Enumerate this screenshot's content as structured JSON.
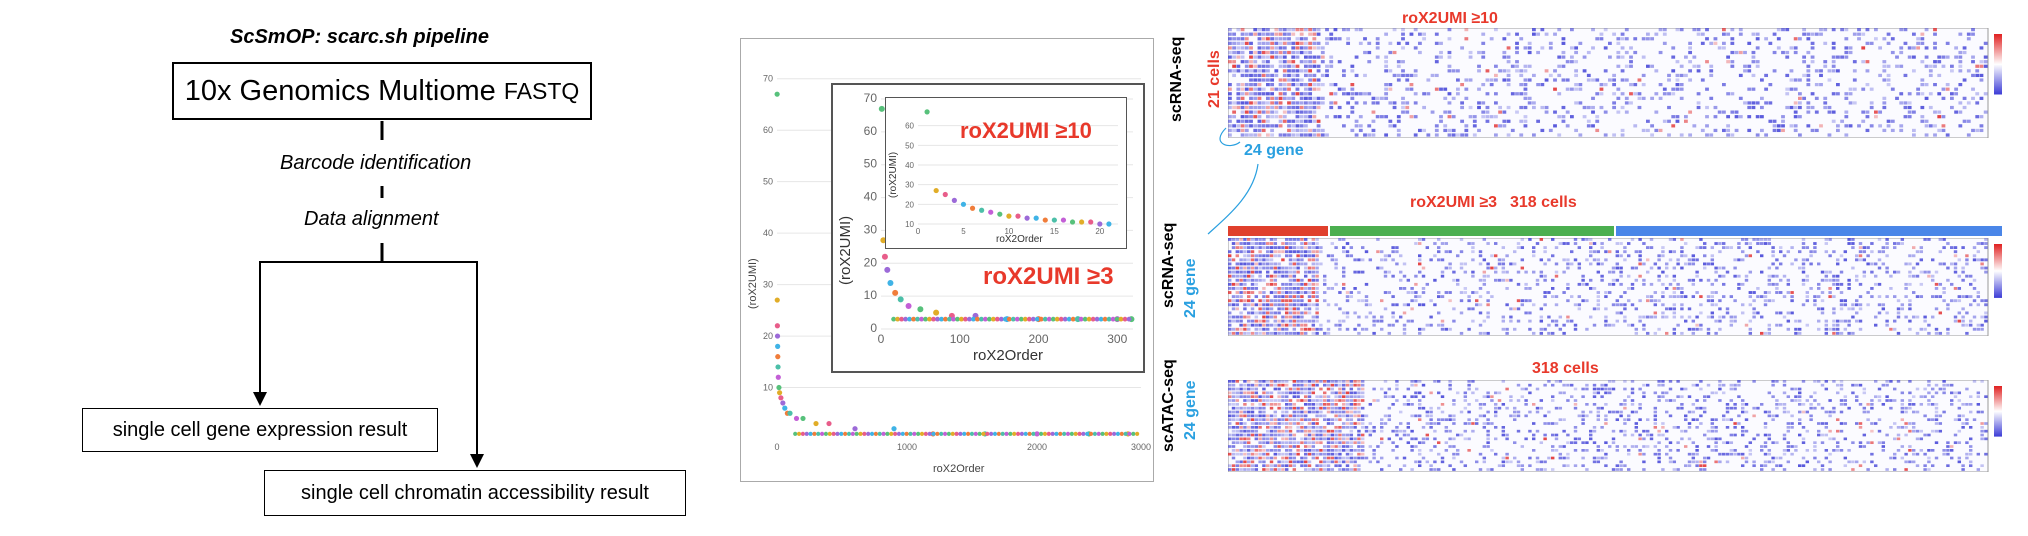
{
  "pipeline": {
    "title": "ScSmOP: scarc.sh pipeline",
    "input_main": "10x Genomics Multiome ",
    "input_suffix": "FASTQ",
    "step1": "Barcode identification",
    "step2": "Data alignment",
    "output_gene": "single cell gene expression result",
    "output_chromatin": "single cell chromatin accessibility result"
  },
  "scatter": {
    "ylabel": "(roX2UMI)",
    "xlabel": "roX2Order",
    "inset_ylabel": "(roX2UMI)",
    "inset_xlabel": "roX2Order",
    "inner_ylabel": "(roX2UMI)",
    "inner_xlabel": "roX2Order",
    "annot_high": "roX2UMI ≥10",
    "annot_low": "roX2UMI ≥3"
  },
  "chart_data": [
    {
      "type": "scatter",
      "xlabel": "roX2Order",
      "ylabel": "(roX2UMI)",
      "xlim": [
        0,
        2800
      ],
      "ylim": [
        0,
        75
      ],
      "x_ticks": [
        0,
        1000,
        2000,
        3000
      ],
      "y_ticks": [
        10,
        20,
        30,
        40,
        50,
        60,
        70
      ],
      "grid": true,
      "points_x": [
        1,
        2,
        3,
        4,
        5,
        6,
        8,
        10,
        15,
        20,
        30,
        45,
        60,
        80,
        100,
        150,
        200,
        300,
        400,
        600,
        900,
        1200,
        1600,
        2000,
        2400,
        2700
      ],
      "points_y": [
        67,
        27,
        22,
        20,
        18,
        16,
        14,
        12,
        10,
        9,
        8,
        7,
        6,
        5,
        5,
        4,
        4,
        3,
        3,
        2,
        2,
        1,
        1,
        1,
        1,
        1
      ]
    },
    {
      "type": "scatter",
      "xlabel": "roX2Order",
      "ylabel": "(roX2UMI)",
      "xlim": [
        0,
        320
      ],
      "ylim": [
        0,
        70
      ],
      "x_ticks": [
        0,
        100,
        200,
        300
      ],
      "y_ticks": [
        0,
        10,
        20,
        30,
        40,
        50,
        60,
        70
      ],
      "points_x": [
        1,
        3,
        5,
        8,
        12,
        18,
        25,
        35,
        50,
        70,
        90,
        120,
        160,
        200,
        250,
        300,
        318
      ],
      "points_y": [
        67,
        27,
        22,
        18,
        14,
        11,
        9,
        7,
        6,
        5,
        4,
        4,
        3,
        3,
        3,
        3,
        3
      ]
    },
    {
      "type": "scatter",
      "xlabel": "roX2Order",
      "ylabel": "(roX2UMI)",
      "xlim": [
        0,
        22
      ],
      "ylim": [
        10,
        70
      ],
      "x_ticks": [
        0,
        5,
        10,
        15,
        20
      ],
      "y_ticks": [
        10,
        20,
        30,
        40,
        50,
        60
      ],
      "points_x": [
        1,
        2,
        3,
        4,
        5,
        6,
        7,
        8,
        9,
        10,
        11,
        12,
        13,
        14,
        15,
        16,
        17,
        18,
        19,
        20,
        21
      ],
      "points_y": [
        67,
        27,
        25,
        22,
        20,
        18,
        17,
        16,
        15,
        14,
        14,
        13,
        13,
        12,
        12,
        12,
        11,
        11,
        11,
        10,
        10
      ]
    }
  ],
  "heatmaps": {
    "top": {
      "title": "roX2UMI ≥10",
      "side_label": "scRNA-seq",
      "cells_label": "21 cells",
      "gene_label": "24 gene"
    },
    "middle": {
      "title_a": "roX2UMI ≥3",
      "title_b": "318 cells",
      "side_label": "scRNA-seq",
      "gene_label": "24 gene"
    },
    "bottom": {
      "title": "318 cells",
      "side_label": "scATAC-seq",
      "gene_label": "24 gene"
    }
  },
  "colors": {
    "annotation_red": "#e8392b",
    "annotation_blue": "#2aa0e0",
    "bar_red": "#e0402d",
    "bar_green": "#4caf50",
    "bar_blue": "#4a86e8",
    "heat_low": "#3b3bd6",
    "heat_high": "#e02020"
  }
}
